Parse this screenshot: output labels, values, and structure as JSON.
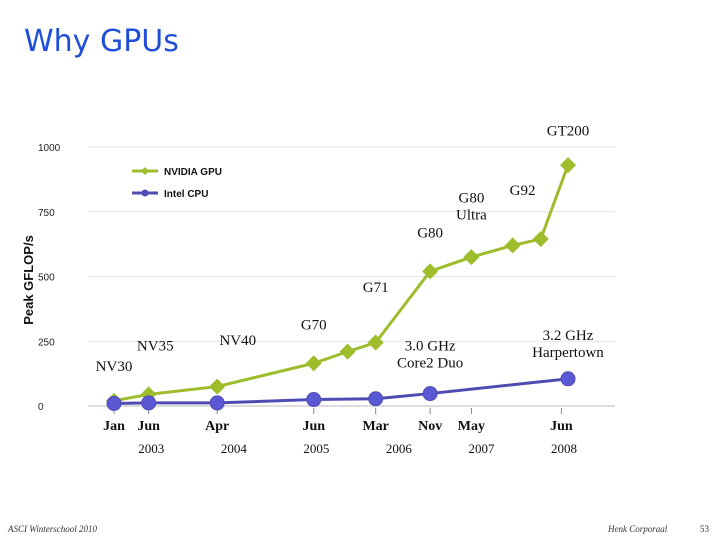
{
  "slide": {
    "title": "Why GPUs",
    "footer_left": "ASCI Winterschool 2010",
    "footer_right": "Henk Corporaal",
    "page_number": "53"
  },
  "colors": {
    "nvidia": "#9dbd2c",
    "intel": "#4e4bb3",
    "title": "#1f4fd8",
    "axis_text": "#222222"
  },
  "chart_data": {
    "type": "line",
    "ylabel": "Peak GFLOP/s",
    "ylim": [
      0,
      1000
    ],
    "yticks": [
      0,
      250,
      500,
      750,
      1000
    ],
    "grid": false,
    "legend_position": "top-left",
    "x_range": [
      2002.5,
      2008.5
    ],
    "x_month_ticks": [
      {
        "label": "Jan",
        "x": 2003.0
      },
      {
        "label": "Jun",
        "x": 2003.42
      },
      {
        "label": "Apr",
        "x": 2004.25
      },
      {
        "label": "Jun",
        "x": 2005.42
      },
      {
        "label": "Mar",
        "x": 2006.17
      },
      {
        "label": "Nov",
        "x": 2006.83
      },
      {
        "label": "May",
        "x": 2007.33
      },
      {
        "label": "Jun",
        "x": 2008.42
      }
    ],
    "x_year_labels": [
      {
        "label": "2003",
        "x": 2003.5
      },
      {
        "label": "2004",
        "x": 2004.5
      },
      {
        "label": "2005",
        "x": 2005.5
      },
      {
        "label": "2006",
        "x": 2006.5
      },
      {
        "label": "2007",
        "x": 2007.5
      },
      {
        "label": "2008",
        "x": 2008.5
      }
    ],
    "series": [
      {
        "name": "NVIDIA GPU",
        "color": "#9dbd2c",
        "marker": "diamond",
        "points": [
          {
            "x": 2003.0,
            "y": 20
          },
          {
            "x": 2003.42,
            "y": 45
          },
          {
            "x": 2004.25,
            "y": 75
          },
          {
            "x": 2005.42,
            "y": 165
          },
          {
            "x": 2005.83,
            "y": 210
          },
          {
            "x": 2006.17,
            "y": 245
          },
          {
            "x": 2006.83,
            "y": 520
          },
          {
            "x": 2007.33,
            "y": 575
          },
          {
            "x": 2007.83,
            "y": 620
          },
          {
            "x": 2008.17,
            "y": 645
          },
          {
            "x": 2008.5,
            "y": 930
          }
        ]
      },
      {
        "name": "Intel CPU",
        "color": "#4e4bb3",
        "marker": "circle",
        "points": [
          {
            "x": 2003.0,
            "y": 10
          },
          {
            "x": 2003.42,
            "y": 12
          },
          {
            "x": 2004.25,
            "y": 12
          },
          {
            "x": 2005.42,
            "y": 25
          },
          {
            "x": 2006.17,
            "y": 28
          },
          {
            "x": 2006.83,
            "y": 48
          },
          {
            "x": 2008.5,
            "y": 105
          }
        ]
      }
    ],
    "annotations": [
      {
        "lines": [
          "NV30"
        ],
        "x": 2003.0,
        "y": 135
      },
      {
        "lines": [
          "NV35"
        ],
        "x": 2003.5,
        "y": 215
      },
      {
        "lines": [
          "NV40"
        ],
        "x": 2004.5,
        "y": 235
      },
      {
        "lines": [
          "G70"
        ],
        "x": 2005.42,
        "y": 295
      },
      {
        "lines": [
          "G71"
        ],
        "x": 2006.17,
        "y": 440
      },
      {
        "lines": [
          "G80"
        ],
        "x": 2006.83,
        "y": 650
      },
      {
        "lines": [
          "G80",
          "Ultra"
        ],
        "x": 2007.33,
        "y": 785
      },
      {
        "lines": [
          "G92"
        ],
        "x": 2007.95,
        "y": 815
      },
      {
        "lines": [
          "GT200"
        ],
        "x": 2008.5,
        "y": 1045
      },
      {
        "lines": [
          "3.0 GHz",
          "Core2 Duo"
        ],
        "x": 2006.83,
        "y": 215
      },
      {
        "lines": [
          "3.2 GHz",
          "Harpertown"
        ],
        "x": 2008.5,
        "y": 255
      }
    ]
  }
}
